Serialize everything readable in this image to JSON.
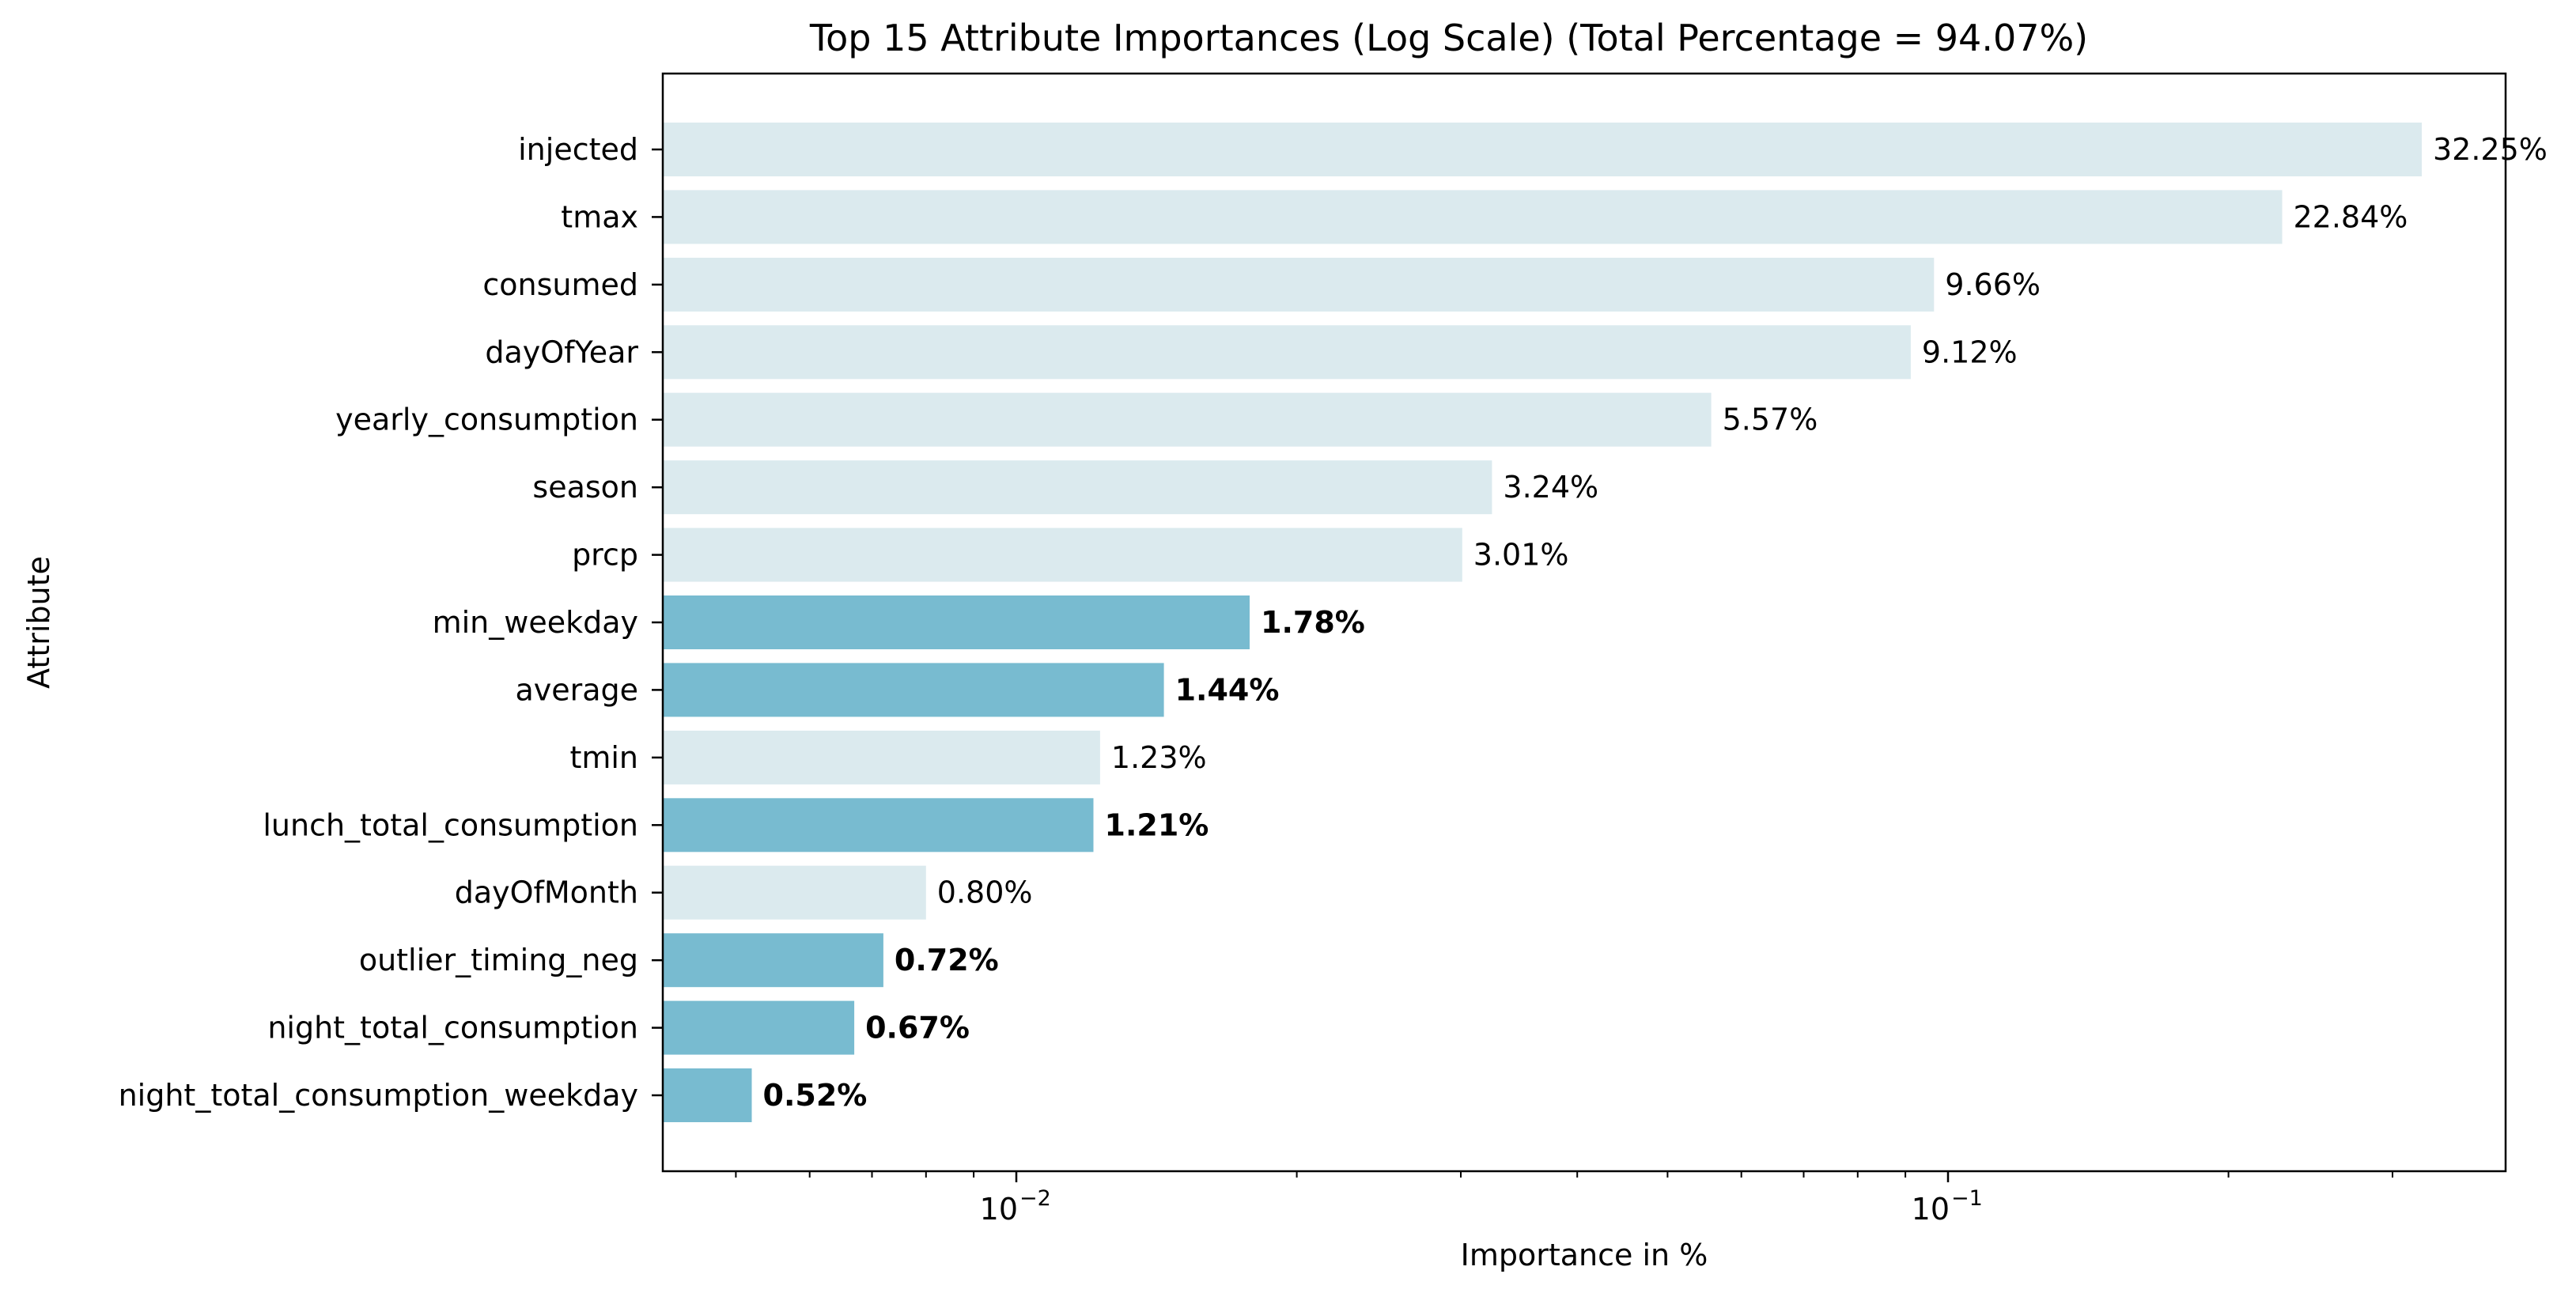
{
  "chart_data": {
    "type": "bar",
    "orientation": "horizontal",
    "title": "Top 15 Attribute Importances (Log Scale) (Total Percentage = 94.07%)",
    "xlabel": "Importance in %",
    "ylabel": "Attribute",
    "x_scale": "log",
    "xlim": [
      0.0045,
      0.35
    ],
    "x_ticks": [
      {
        "value": 0.01,
        "base": "10",
        "exp": "−2"
      },
      {
        "value": 0.1,
        "base": "10",
        "exp": "−1"
      }
    ],
    "grid": false,
    "legend": "none",
    "colors": {
      "regular": "#dbeaee",
      "highlighted": "#78bbd0"
    },
    "bars": [
      {
        "category": "injected",
        "value": 0.3225,
        "label": "32.25%",
        "highlighted": false
      },
      {
        "category": "tmax",
        "value": 0.2284,
        "label": "22.84%",
        "highlighted": false
      },
      {
        "category": "consumed",
        "value": 0.0966,
        "label": "9.66%",
        "highlighted": false
      },
      {
        "category": "dayOfYear",
        "value": 0.0912,
        "label": "9.12%",
        "highlighted": false
      },
      {
        "category": "yearly_consumption",
        "value": 0.0557,
        "label": "5.57%",
        "highlighted": false
      },
      {
        "category": "season",
        "value": 0.0324,
        "label": "3.24%",
        "highlighted": false
      },
      {
        "category": "prcp",
        "value": 0.0301,
        "label": "3.01%",
        "highlighted": false
      },
      {
        "category": "min_weekday",
        "value": 0.0178,
        "label": "1.78%",
        "highlighted": true
      },
      {
        "category": "average",
        "value": 0.0144,
        "label": "1.44%",
        "highlighted": true
      },
      {
        "category": "tmin",
        "value": 0.0123,
        "label": "1.23%",
        "highlighted": false
      },
      {
        "category": "lunch_total_consumption",
        "value": 0.0121,
        "label": "1.21%",
        "highlighted": true
      },
      {
        "category": "dayOfMonth",
        "value": 0.008,
        "label": "0.80%",
        "highlighted": false
      },
      {
        "category": "outlier_timing_neg",
        "value": 0.0072,
        "label": "0.72%",
        "highlighted": true
      },
      {
        "category": "night_total_consumption",
        "value": 0.0067,
        "label": "0.67%",
        "highlighted": true
      },
      {
        "category": "night_total_consumption_weekday",
        "value": 0.0052,
        "label": "0.52%",
        "highlighted": true
      }
    ]
  }
}
